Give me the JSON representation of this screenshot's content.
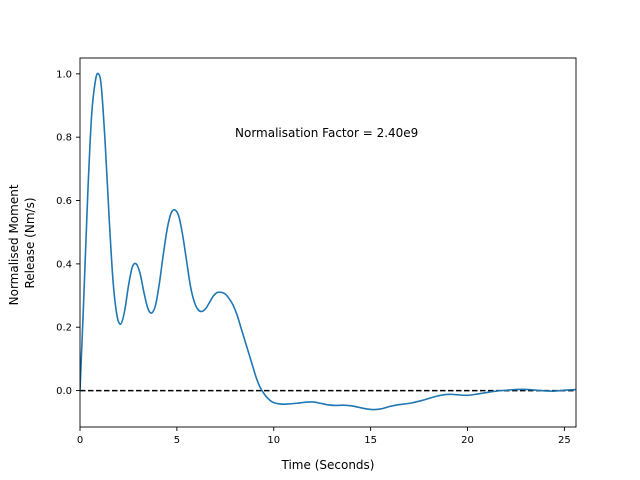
{
  "chart_data": {
    "type": "line",
    "xlabel": "Time (Seconds)",
    "ylabel_lines": [
      "Normalised Moment",
      "Release (Nm/s)"
    ],
    "xlim": [
      0,
      25.6
    ],
    "ylim": [
      -0.115,
      1.05
    ],
    "xticks": [
      0,
      5,
      10,
      15,
      20,
      25
    ],
    "yticks": [
      0.0,
      0.2,
      0.4,
      0.6,
      0.8,
      1.0
    ],
    "xtick_labels": [
      "0",
      "5",
      "10",
      "15",
      "20",
      "25"
    ],
    "ytick_labels": [
      "0.0",
      "0.2",
      "0.4",
      "0.6",
      "0.8",
      "1.0"
    ],
    "annotation": "Normalisation Factor = 2.40e9",
    "reference_line": {
      "y": 0.0,
      "style": "dashed",
      "color": "#000000"
    },
    "grid": false,
    "series": [
      {
        "color": "#1f77b4",
        "x": [
          0,
          0.2,
          0.4,
          0.6,
          0.8,
          0.95,
          1.1,
          1.3,
          1.5,
          1.7,
          1.9,
          2.1,
          2.3,
          2.5,
          2.7,
          2.9,
          3.1,
          3.3,
          3.5,
          3.7,
          3.9,
          4.1,
          4.3,
          4.5,
          4.7,
          4.9,
          5.1,
          5.3,
          5.5,
          5.7,
          5.9,
          6.1,
          6.3,
          6.5,
          6.7,
          6.9,
          7.1,
          7.3,
          7.5,
          7.7,
          7.9,
          8.1,
          8.3,
          8.5,
          8.7,
          8.9,
          9.1,
          9.3,
          9.5,
          9.7,
          9.9,
          10.1,
          10.3,
          10.5,
          10.8,
          11.2,
          11.6,
          12.0,
          12.4,
          12.8,
          13.2,
          13.6,
          14.0,
          14.4,
          14.8,
          15.2,
          15.6,
          16.0,
          16.4,
          16.8,
          17.2,
          17.6,
          18.0,
          18.4,
          18.8,
          19.2,
          19.6,
          20.0,
          20.4,
          20.8,
          21.2,
          21.6,
          22.0,
          22.4,
          22.8,
          23.2,
          23.6,
          24.0,
          24.4,
          24.8,
          25.2,
          25.6
        ],
        "y": [
          0.0,
          0.3,
          0.62,
          0.87,
          0.98,
          1.0,
          0.96,
          0.78,
          0.55,
          0.35,
          0.24,
          0.21,
          0.25,
          0.33,
          0.39,
          0.4,
          0.37,
          0.31,
          0.26,
          0.245,
          0.27,
          0.34,
          0.43,
          0.51,
          0.56,
          0.57,
          0.55,
          0.49,
          0.41,
          0.33,
          0.28,
          0.255,
          0.25,
          0.26,
          0.28,
          0.3,
          0.31,
          0.31,
          0.305,
          0.29,
          0.27,
          0.24,
          0.2,
          0.16,
          0.12,
          0.08,
          0.04,
          0.01,
          -0.01,
          -0.025,
          -0.035,
          -0.04,
          -0.042,
          -0.043,
          -0.042,
          -0.04,
          -0.037,
          -0.036,
          -0.04,
          -0.045,
          -0.047,
          -0.046,
          -0.048,
          -0.053,
          -0.058,
          -0.06,
          -0.057,
          -0.05,
          -0.045,
          -0.042,
          -0.038,
          -0.032,
          -0.025,
          -0.018,
          -0.013,
          -0.012,
          -0.014,
          -0.015,
          -0.012,
          -0.008,
          -0.004,
          -0.001,
          0.001,
          0.003,
          0.004,
          0.003,
          0.001,
          -0.001,
          -0.002,
          0.0,
          0.002,
          0.003
        ]
      }
    ]
  }
}
